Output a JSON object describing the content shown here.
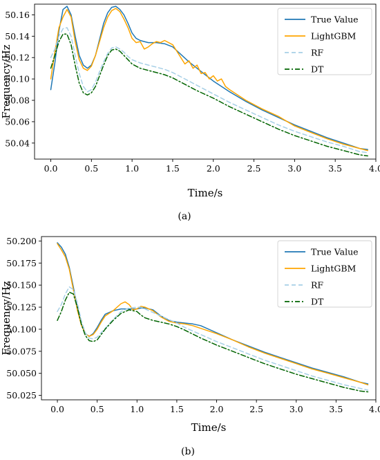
{
  "chart_data": [
    {
      "type": "line",
      "caption": "(a)",
      "xlabel": "Time/s",
      "ylabel": "Frequency/Hz",
      "xlim": [
        -0.2,
        4.0
      ],
      "ylim": [
        50.025,
        50.17
      ],
      "xticks": [
        0.0,
        0.5,
        1.0,
        1.5,
        2.0,
        2.5,
        3.0,
        3.5,
        4.0
      ],
      "yticks": [
        50.04,
        50.06,
        50.08,
        50.1,
        50.12,
        50.14,
        50.16
      ],
      "yticklabels": [
        "50.04",
        "50.06",
        "50.08",
        "50.10",
        "50.12",
        "50.14",
        "50.16"
      ],
      "legend": {
        "position": "top-right"
      },
      "series": [
        {
          "name": "True Value",
          "color": "#1f77b4",
          "style": "solid",
          "x": [
            0.0,
            0.05,
            0.1,
            0.15,
            0.2,
            0.25,
            0.3,
            0.35,
            0.4,
            0.45,
            0.5,
            0.55,
            0.6,
            0.65,
            0.7,
            0.75,
            0.8,
            0.85,
            0.9,
            0.95,
            1.0,
            1.05,
            1.1,
            1.15,
            1.2,
            1.3,
            1.4,
            1.5,
            1.6,
            1.7,
            1.8,
            1.9,
            2.0,
            2.2,
            2.4,
            2.6,
            2.8,
            3.0,
            3.2,
            3.4,
            3.6,
            3.8,
            3.9
          ],
          "y": [
            50.09,
            50.115,
            50.145,
            50.165,
            50.168,
            50.16,
            50.14,
            50.122,
            50.113,
            50.11,
            50.113,
            50.122,
            50.137,
            50.152,
            50.162,
            50.167,
            50.168,
            50.165,
            50.16,
            50.152,
            50.143,
            50.138,
            50.136,
            50.135,
            50.134,
            50.134,
            50.133,
            50.13,
            50.123,
            50.116,
            50.11,
            50.104,
            50.098,
            50.088,
            50.079,
            50.071,
            50.064,
            50.057,
            50.051,
            50.045,
            50.04,
            50.035,
            50.034
          ]
        },
        {
          "name": "LightGBM",
          "color": "#ffa500",
          "style": "solid",
          "x": [
            0.0,
            0.05,
            0.1,
            0.15,
            0.2,
            0.25,
            0.3,
            0.35,
            0.4,
            0.45,
            0.5,
            0.55,
            0.6,
            0.65,
            0.7,
            0.75,
            0.8,
            0.85,
            0.9,
            0.95,
            1.0,
            1.05,
            1.1,
            1.15,
            1.2,
            1.25,
            1.3,
            1.35,
            1.4,
            1.5,
            1.6,
            1.65,
            1.7,
            1.75,
            1.8,
            1.85,
            1.9,
            1.95,
            2.0,
            2.05,
            2.1,
            2.15,
            2.2,
            2.4,
            2.6,
            2.8,
            3.0,
            3.2,
            3.4,
            3.6,
            3.8,
            3.9
          ],
          "y": [
            50.1,
            50.125,
            50.148,
            50.158,
            50.165,
            50.158,
            50.135,
            50.118,
            50.11,
            50.108,
            50.112,
            50.122,
            50.135,
            50.148,
            50.158,
            50.164,
            50.166,
            50.163,
            50.156,
            50.148,
            50.138,
            50.134,
            50.135,
            50.128,
            50.13,
            50.133,
            50.135,
            50.134,
            50.136,
            50.132,
            50.12,
            50.114,
            50.117,
            50.11,
            50.113,
            50.105,
            50.106,
            50.1,
            50.103,
            50.098,
            50.1,
            50.093,
            50.09,
            50.08,
            50.072,
            50.065,
            50.056,
            50.05,
            50.044,
            50.039,
            50.035,
            50.033
          ]
        },
        {
          "name": "RF",
          "color": "#a6cfe6",
          "style": "dashed",
          "x": [
            0.0,
            0.05,
            0.1,
            0.15,
            0.2,
            0.25,
            0.3,
            0.35,
            0.4,
            0.45,
            0.5,
            0.55,
            0.6,
            0.65,
            0.7,
            0.75,
            0.8,
            0.85,
            0.9,
            0.95,
            1.0,
            1.1,
            1.2,
            1.3,
            1.4,
            1.5,
            1.6,
            1.8,
            2.0,
            2.2,
            2.4,
            2.6,
            2.8,
            3.0,
            3.2,
            3.4,
            3.6,
            3.8,
            3.9
          ],
          "y": [
            50.12,
            50.128,
            50.14,
            50.147,
            50.148,
            50.14,
            50.122,
            50.105,
            50.093,
            50.088,
            50.09,
            50.097,
            50.107,
            50.116,
            50.124,
            50.129,
            50.13,
            50.128,
            50.125,
            50.121,
            50.118,
            50.115,
            50.113,
            50.111,
            50.109,
            50.106,
            50.102,
            50.094,
            50.086,
            50.078,
            50.071,
            50.064,
            50.057,
            50.051,
            50.046,
            50.041,
            50.037,
            50.032,
            50.031
          ]
        },
        {
          "name": "DT",
          "color": "#006400",
          "style": "dashdot",
          "x": [
            0.0,
            0.05,
            0.1,
            0.15,
            0.2,
            0.25,
            0.3,
            0.35,
            0.4,
            0.45,
            0.5,
            0.55,
            0.6,
            0.65,
            0.7,
            0.75,
            0.8,
            0.85,
            0.9,
            0.95,
            1.0,
            1.1,
            1.2,
            1.3,
            1.4,
            1.5,
            1.6,
            1.8,
            2.0,
            2.2,
            2.4,
            2.6,
            2.8,
            3.0,
            3.2,
            3.4,
            3.6,
            3.8,
            3.9
          ],
          "y": [
            50.11,
            50.122,
            50.135,
            50.142,
            50.142,
            50.132,
            50.113,
            50.096,
            50.087,
            50.085,
            50.087,
            50.093,
            50.103,
            50.113,
            50.122,
            50.127,
            50.128,
            50.126,
            50.122,
            50.118,
            50.114,
            50.11,
            50.108,
            50.106,
            50.104,
            50.101,
            50.097,
            50.089,
            50.082,
            50.074,
            50.067,
            50.06,
            50.053,
            50.047,
            50.042,
            50.037,
            50.033,
            50.029,
            50.028
          ]
        }
      ]
    },
    {
      "type": "line",
      "caption": "(b)",
      "xlabel": "Time/s",
      "ylabel": "Frequency/Hz",
      "xlim": [
        -0.2,
        4.0
      ],
      "ylim": [
        50.02,
        50.205
      ],
      "xticks": [
        0.0,
        0.5,
        1.0,
        1.5,
        2.0,
        2.5,
        3.0,
        3.5,
        4.0
      ],
      "yticks": [
        50.025,
        50.05,
        50.075,
        50.1,
        50.125,
        50.15,
        50.175,
        50.2
      ],
      "yticklabels": [
        "50.025",
        "50.050",
        "50.075",
        "50.100",
        "50.125",
        "50.150",
        "50.175",
        "50.200"
      ],
      "legend": {
        "position": "top-right"
      },
      "series": [
        {
          "name": "True Value",
          "color": "#1f77b4",
          "style": "solid",
          "x": [
            0.0,
            0.05,
            0.1,
            0.15,
            0.2,
            0.25,
            0.3,
            0.35,
            0.4,
            0.45,
            0.5,
            0.55,
            0.6,
            0.7,
            0.8,
            0.9,
            1.0,
            1.05,
            1.1,
            1.2,
            1.3,
            1.4,
            1.5,
            1.6,
            1.7,
            1.8,
            2.0,
            2.2,
            2.4,
            2.6,
            2.8,
            3.0,
            3.2,
            3.4,
            3.6,
            3.8,
            3.9
          ],
          "y": [
            50.198,
            50.193,
            50.185,
            50.17,
            50.148,
            50.125,
            50.106,
            50.095,
            50.092,
            50.095,
            50.102,
            50.11,
            50.117,
            50.121,
            50.123,
            50.123,
            50.123,
            50.124,
            50.124,
            50.122,
            50.115,
            50.11,
            50.108,
            50.107,
            50.106,
            50.104,
            50.096,
            50.088,
            50.081,
            50.074,
            50.068,
            50.062,
            50.056,
            50.051,
            50.046,
            50.04,
            50.038
          ]
        },
        {
          "name": "LightGBM",
          "color": "#ffa500",
          "style": "solid",
          "x": [
            0.0,
            0.05,
            0.1,
            0.15,
            0.2,
            0.25,
            0.3,
            0.35,
            0.4,
            0.45,
            0.5,
            0.55,
            0.6,
            0.7,
            0.8,
            0.85,
            0.9,
            0.95,
            1.0,
            1.05,
            1.1,
            1.2,
            1.3,
            1.4,
            1.5,
            1.6,
            1.7,
            1.8,
            2.0,
            2.2,
            2.4,
            2.6,
            2.8,
            3.0,
            3.2,
            3.4,
            3.6,
            3.8,
            3.9
          ],
          "y": [
            50.197,
            50.19,
            50.182,
            50.168,
            50.145,
            50.122,
            50.105,
            50.095,
            50.092,
            50.094,
            50.1,
            50.108,
            50.115,
            50.121,
            50.129,
            50.131,
            50.128,
            50.122,
            50.123,
            50.126,
            50.125,
            50.121,
            50.114,
            50.109,
            50.107,
            50.106,
            50.104,
            50.101,
            50.095,
            50.088,
            50.08,
            50.073,
            50.067,
            50.061,
            50.055,
            50.05,
            50.045,
            50.04,
            50.037
          ]
        },
        {
          "name": "RF",
          "color": "#a6cfe6",
          "style": "dashed",
          "x": [
            0.0,
            0.05,
            0.1,
            0.15,
            0.2,
            0.25,
            0.3,
            0.35,
            0.4,
            0.45,
            0.5,
            0.55,
            0.6,
            0.7,
            0.8,
            0.9,
            1.0,
            1.05,
            1.1,
            1.2,
            1.3,
            1.4,
            1.5,
            1.6,
            1.8,
            2.0,
            2.2,
            2.4,
            2.6,
            2.8,
            3.0,
            3.2,
            3.4,
            3.6,
            3.8,
            3.9
          ],
          "y": [
            50.12,
            50.128,
            50.14,
            50.148,
            50.145,
            50.13,
            50.11,
            50.096,
            50.09,
            50.089,
            50.091,
            50.096,
            50.101,
            50.111,
            50.12,
            50.124,
            50.125,
            50.125,
            50.123,
            50.119,
            50.115,
            50.111,
            50.107,
            50.102,
            50.094,
            50.086,
            50.079,
            50.072,
            50.065,
            50.059,
            50.053,
            50.047,
            50.042,
            50.037,
            50.033,
            50.031
          ]
        },
        {
          "name": "DT",
          "color": "#006400",
          "style": "dashdot",
          "x": [
            0.0,
            0.05,
            0.1,
            0.15,
            0.2,
            0.25,
            0.3,
            0.35,
            0.4,
            0.45,
            0.5,
            0.55,
            0.6,
            0.7,
            0.8,
            0.9,
            1.0,
            1.05,
            1.1,
            1.2,
            1.3,
            1.4,
            1.5,
            1.6,
            1.8,
            2.0,
            2.2,
            2.4,
            2.6,
            2.8,
            3.0,
            3.2,
            3.4,
            3.6,
            3.8,
            3.9
          ],
          "y": [
            50.11,
            50.12,
            50.133,
            50.142,
            50.14,
            50.125,
            50.106,
            50.093,
            50.087,
            50.086,
            50.088,
            50.094,
            50.1,
            50.11,
            50.118,
            50.122,
            50.12,
            50.116,
            50.113,
            50.11,
            50.108,
            50.106,
            50.103,
            50.099,
            50.09,
            50.082,
            50.075,
            50.068,
            50.061,
            50.055,
            50.049,
            50.044,
            50.039,
            50.034,
            50.03,
            50.029
          ]
        }
      ]
    }
  ]
}
